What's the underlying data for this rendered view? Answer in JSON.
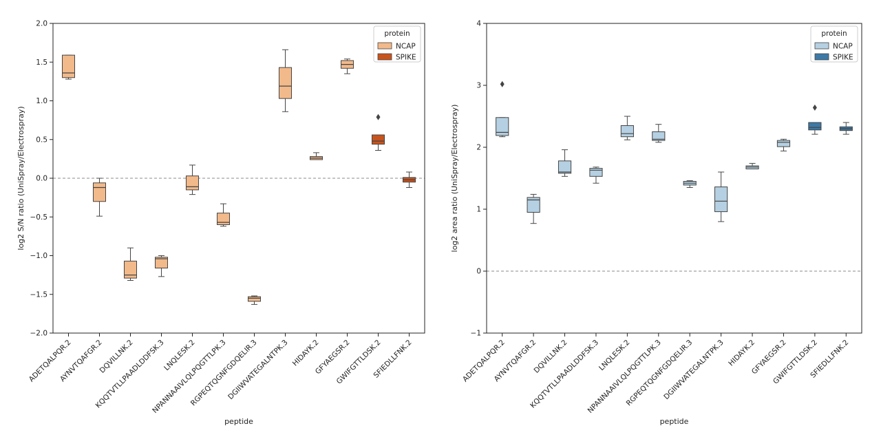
{
  "chart_data": [
    {
      "type": "box",
      "title": "",
      "xlabel": "peptide",
      "ylabel": "log2 S/N ratio (UniSpray/Electrospray)",
      "ylim": [
        -2.0,
        2.0
      ],
      "yticks": [
        -2.0,
        -1.5,
        -1.0,
        -0.5,
        0.0,
        0.5,
        1.0,
        1.5,
        2.0
      ],
      "ytick_labels": [
        "−2.0",
        "−1.5",
        "−1.0",
        "−0.5",
        "0.0",
        "0.5",
        "1.0",
        "1.5",
        "2.0"
      ],
      "reference_line": 0,
      "legend": {
        "title": "protein",
        "placement": "top-right",
        "entries": [
          {
            "label": "NCAP",
            "color": "#f2b98a"
          },
          {
            "label": "SPIKE",
            "color": "#c8541d"
          }
        ]
      },
      "categories": [
        "ADETQALPQR.2",
        "AYNVTQAFGR.2",
        "DQVILLNK.2",
        "KQQTVTLLPAADLDDFSK.3",
        "LNQLESK.2",
        "NPANNAAIVLQLPQGTTLPK.3",
        "RGPEQTQGNFGDQELIR.3",
        "DGIIWVATEGALNTPK.3",
        "HIDAYK.2",
        "GFYAEGSR.2",
        "GWIFGTTLDSK.2",
        "SFIEDLLFNK.2"
      ],
      "boxes": [
        {
          "protein": "NCAP",
          "whislo": 1.28,
          "q1": 1.3,
          "med": 1.36,
          "q3": 1.59,
          "whishi": 1.59,
          "fliers": []
        },
        {
          "protein": "NCAP",
          "whislo": -0.49,
          "q1": -0.3,
          "med": -0.12,
          "q3": -0.06,
          "whishi": 0.0,
          "fliers": []
        },
        {
          "protein": "NCAP",
          "whislo": -1.32,
          "q1": -1.29,
          "med": -1.25,
          "q3": -1.07,
          "whishi": -0.9,
          "fliers": []
        },
        {
          "protein": "NCAP",
          "whislo": -1.27,
          "q1": -1.16,
          "med": -1.04,
          "q3": -1.02,
          "whishi": -1.0,
          "fliers": []
        },
        {
          "protein": "NCAP",
          "whislo": -0.21,
          "q1": -0.15,
          "med": -0.11,
          "q3": 0.03,
          "whishi": 0.17,
          "fliers": []
        },
        {
          "protein": "NCAP",
          "whislo": -0.62,
          "q1": -0.6,
          "med": -0.57,
          "q3": -0.45,
          "whishi": -0.33,
          "fliers": []
        },
        {
          "protein": "NCAP",
          "whislo": -1.63,
          "q1": -1.59,
          "med": -1.55,
          "q3": -1.53,
          "whishi": -1.52,
          "fliers": []
        },
        {
          "protein": "NCAP",
          "whislo": 0.86,
          "q1": 1.03,
          "med": 1.19,
          "q3": 1.43,
          "whishi": 1.66,
          "fliers": []
        },
        {
          "protein": "NCAP",
          "whislo": 0.24,
          "q1": 0.24,
          "med": 0.26,
          "q3": 0.28,
          "whishi": 0.33,
          "fliers": []
        },
        {
          "protein": "NCAP",
          "whislo": 1.35,
          "q1": 1.42,
          "med": 1.47,
          "q3": 1.52,
          "whishi": 1.54,
          "fliers": []
        },
        {
          "protein": "SPIKE",
          "whislo": 0.36,
          "q1": 0.44,
          "med": 0.48,
          "q3": 0.56,
          "whishi": 0.56,
          "fliers": [
            0.79
          ]
        },
        {
          "protein": "SPIKE",
          "whislo": -0.12,
          "q1": -0.05,
          "med": -0.02,
          "q3": 0.01,
          "whishi": 0.08,
          "fliers": []
        }
      ]
    },
    {
      "type": "box",
      "title": "",
      "xlabel": "peptide",
      "ylabel": "log2 area ratio (UniSpray/Electrospray)",
      "ylim": [
        -1,
        4
      ],
      "yticks": [
        -1,
        0,
        1,
        2,
        3,
        4
      ],
      "ytick_labels": [
        "−1",
        "0",
        "1",
        "2",
        "3",
        "4"
      ],
      "reference_line": 0,
      "legend": {
        "title": "protein",
        "placement": "top-right",
        "entries": [
          {
            "label": "NCAP",
            "color": "#b5d0e2"
          },
          {
            "label": "SPIKE",
            "color": "#3d79a6"
          }
        ]
      },
      "categories": [
        "ADETQALPQR.2",
        "AYNVTQAFGR.2",
        "DQVILLNK.2",
        "KQQTVTLLPAADLDDFSK.3",
        "LNQLESK.2",
        "NPANNAAIVLQLPQGTTLPK.3",
        "RGPEQTQGNFGDQELIR.3",
        "DGIIWVATEGALNTPK.3",
        "HIDAYK.2",
        "GFYAEGSR.2",
        "GWIFGTTLDSK.2",
        "SFIEDLLFNK.2"
      ],
      "boxes": [
        {
          "protein": "NCAP",
          "whislo": 2.17,
          "q1": 2.19,
          "med": 2.24,
          "q3": 2.48,
          "whishi": 2.48,
          "fliers": [
            3.02
          ]
        },
        {
          "protein": "NCAP",
          "whislo": 0.77,
          "q1": 0.95,
          "med": 1.15,
          "q3": 1.19,
          "whishi": 1.24,
          "fliers": []
        },
        {
          "protein": "NCAP",
          "whislo": 1.53,
          "q1": 1.58,
          "med": 1.6,
          "q3": 1.78,
          "whishi": 1.96,
          "fliers": []
        },
        {
          "protein": "NCAP",
          "whislo": 1.42,
          "q1": 1.53,
          "med": 1.63,
          "q3": 1.66,
          "whishi": 1.68,
          "fliers": []
        },
        {
          "protein": "NCAP",
          "whislo": 2.12,
          "q1": 2.17,
          "med": 2.22,
          "q3": 2.35,
          "whishi": 2.5,
          "fliers": []
        },
        {
          "protein": "NCAP",
          "whislo": 2.08,
          "q1": 2.11,
          "med": 2.13,
          "q3": 2.25,
          "whishi": 2.37,
          "fliers": []
        },
        {
          "protein": "NCAP",
          "whislo": 1.35,
          "q1": 1.39,
          "med": 1.42,
          "q3": 1.45,
          "whishi": 1.46,
          "fliers": []
        },
        {
          "protein": "NCAP",
          "whislo": 0.8,
          "q1": 0.96,
          "med": 1.13,
          "q3": 1.36,
          "whishi": 1.6,
          "fliers": []
        },
        {
          "protein": "NCAP",
          "whislo": 1.65,
          "q1": 1.65,
          "med": 1.68,
          "q3": 1.7,
          "whishi": 1.74,
          "fliers": []
        },
        {
          "protein": "NCAP",
          "whislo": 1.94,
          "q1": 2.01,
          "med": 2.08,
          "q3": 2.11,
          "whishi": 2.13,
          "fliers": []
        },
        {
          "protein": "SPIKE",
          "whislo": 2.21,
          "q1": 2.28,
          "med": 2.32,
          "q3": 2.4,
          "whishi": 2.4,
          "fliers": [
            2.64
          ]
        },
        {
          "protein": "SPIKE",
          "whislo": 2.21,
          "q1": 2.27,
          "med": 2.3,
          "q3": 2.33,
          "whishi": 2.4,
          "fliers": []
        }
      ]
    }
  ]
}
